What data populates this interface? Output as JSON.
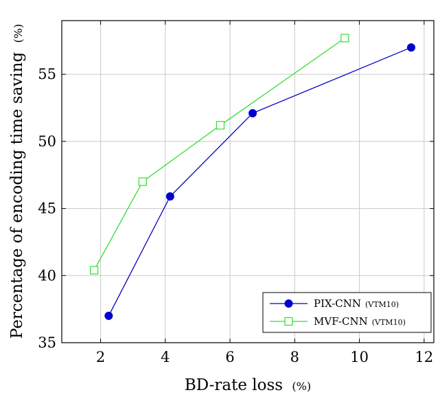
{
  "chart_data": {
    "type": "line",
    "xlabel": "BD-rate loss",
    "xlabel_unit": "(%)",
    "ylabel": "Percentage of encoding time saving",
    "ylabel_unit": "(%)",
    "xlim": [
      0.8,
      12.3
    ],
    "ylim": [
      35,
      59
    ],
    "xticks": [
      2,
      4,
      6,
      8,
      10,
      12
    ],
    "yticks": [
      35,
      40,
      45,
      50,
      55
    ],
    "grid": true,
    "legend_position": "bottom-right",
    "series": [
      {
        "name": "PIX-CNN",
        "name_suffix": "(VTM10)",
        "color": "#0000cc",
        "marker": "filled-circle",
        "x": [
          2.25,
          4.15,
          6.7,
          11.6
        ],
        "y": [
          37.0,
          45.9,
          52.1,
          57.0
        ]
      },
      {
        "name": "MVF-CNN",
        "name_suffix": "(VTM10)",
        "color": "#33dd33",
        "marker": "open-square",
        "x": [
          1.8,
          3.3,
          5.7,
          9.55
        ],
        "y": [
          40.4,
          47.0,
          51.2,
          57.7
        ]
      }
    ]
  }
}
